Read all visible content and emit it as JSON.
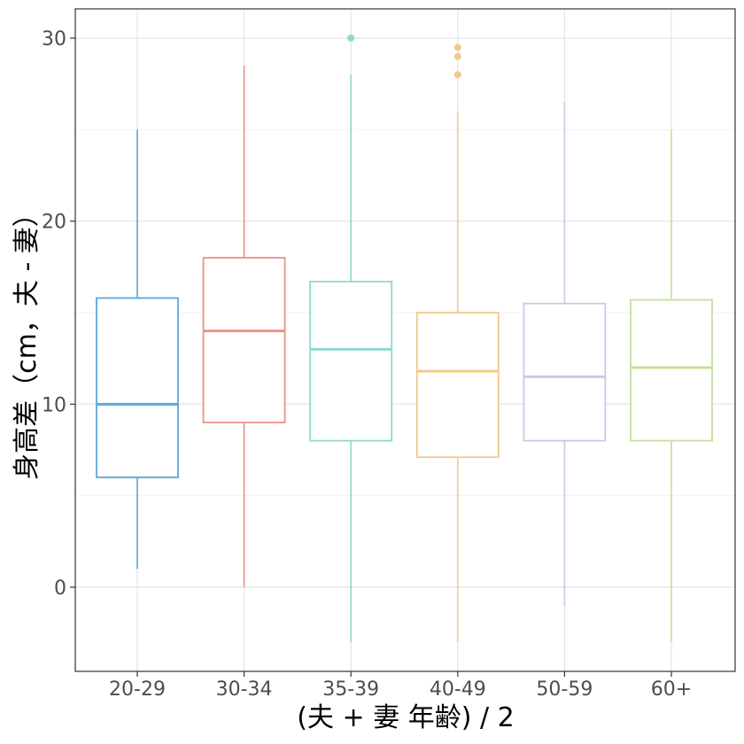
{
  "chart_data": {
    "type": "boxplot",
    "title": "",
    "xlabel": "(夫 + 妻  年齢) / 2",
    "ylabel": "身高差（cm，夫 - 妻）",
    "ylim": [
      -4.6,
      31.6
    ],
    "yticks": [
      0,
      10,
      20,
      30
    ],
    "grid": true,
    "legend": "none",
    "categories": [
      "20-29",
      "30-34",
      "35-39",
      "40-49",
      "50-59",
      "60+"
    ],
    "boxes": [
      {
        "category": "20-29",
        "lower_whisker": 1,
        "q1": 6,
        "median": 10,
        "q3": 15.8,
        "upper_whisker": 25,
        "outliers": [],
        "color": "#5aa9d8"
      },
      {
        "category": "30-34",
        "lower_whisker": 0,
        "q1": 9,
        "median": 14,
        "q3": 18,
        "upper_whisker": 28.5,
        "outliers": [],
        "color": "#e8938b"
      },
      {
        "category": "35-39",
        "lower_whisker": -3,
        "q1": 8,
        "median": 13,
        "q3": 16.7,
        "upper_whisker": 28,
        "outliers": [
          30
        ],
        "color": "#8fd8d0"
      },
      {
        "category": "40-49",
        "lower_whisker": -3,
        "q1": 7.1,
        "median": 11.8,
        "q3": 15,
        "upper_whisker": 26,
        "outliers": [
          28,
          29,
          29.5
        ],
        "color": "#f2c98a"
      },
      {
        "category": "50-59",
        "lower_whisker": -1,
        "q1": 8,
        "median": 11.5,
        "q3": 15.5,
        "upper_whisker": 26.5,
        "outliers": [],
        "color": "#cdc7e6"
      },
      {
        "category": "60+",
        "lower_whisker": -3,
        "q1": 8,
        "median": 12,
        "q3": 15.7,
        "upper_whisker": 25,
        "outliers": [],
        "color": "#c3e29a"
      }
    ]
  }
}
